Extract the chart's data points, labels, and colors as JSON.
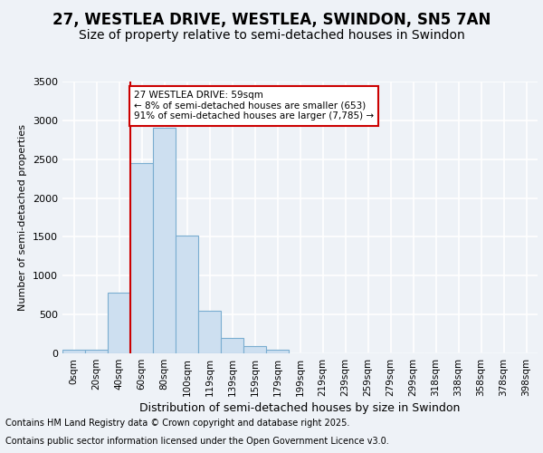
{
  "title_line1": "27, WESTLEA DRIVE, WESTLEA, SWINDON, SN5 7AN",
  "title_line2": "Size of property relative to semi-detached houses in Swindon",
  "xlabel": "Distribution of semi-detached houses by size in Swindon",
  "ylabel": "Number of semi-detached properties",
  "categories": [
    "0sqm",
    "20sqm",
    "40sqm",
    "60sqm",
    "80sqm",
    "100sqm",
    "119sqm",
    "139sqm",
    "159sqm",
    "179sqm",
    "199sqm",
    "219sqm",
    "239sqm",
    "259sqm",
    "279sqm",
    "299sqm",
    "318sqm",
    "338sqm",
    "358sqm",
    "378sqm",
    "398sqm"
  ],
  "values": [
    50,
    50,
    780,
    2450,
    2900,
    1520,
    550,
    200,
    95,
    50,
    0,
    0,
    0,
    0,
    0,
    0,
    0,
    0,
    0,
    0,
    0
  ],
  "bar_color": "#cddff0",
  "bar_edge_color": "#7aadd0",
  "vline_index": 3,
  "ylim": [
    0,
    3500
  ],
  "yticks": [
    0,
    500,
    1000,
    1500,
    2000,
    2500,
    3000,
    3500
  ],
  "annotation_text": "27 WESTLEA DRIVE: 59sqm\n← 8% of semi-detached houses are smaller (653)\n91% of semi-detached houses are larger (7,785) →",
  "annotation_box_color": "#ffffff",
  "annotation_box_edge": "#cc0000",
  "vline_color": "#cc0000",
  "footer_line1": "Contains HM Land Registry data © Crown copyright and database right 2025.",
  "footer_line2": "Contains public sector information licensed under the Open Government Licence v3.0.",
  "bg_color": "#eef2f7",
  "plot_bg_color": "#eef2f7",
  "grid_color": "#ffffff",
  "title_fontsize": 12,
  "subtitle_fontsize": 10,
  "footer_fontsize": 7,
  "tick_fontsize": 7.5,
  "ylabel_fontsize": 8,
  "xlabel_fontsize": 9
}
